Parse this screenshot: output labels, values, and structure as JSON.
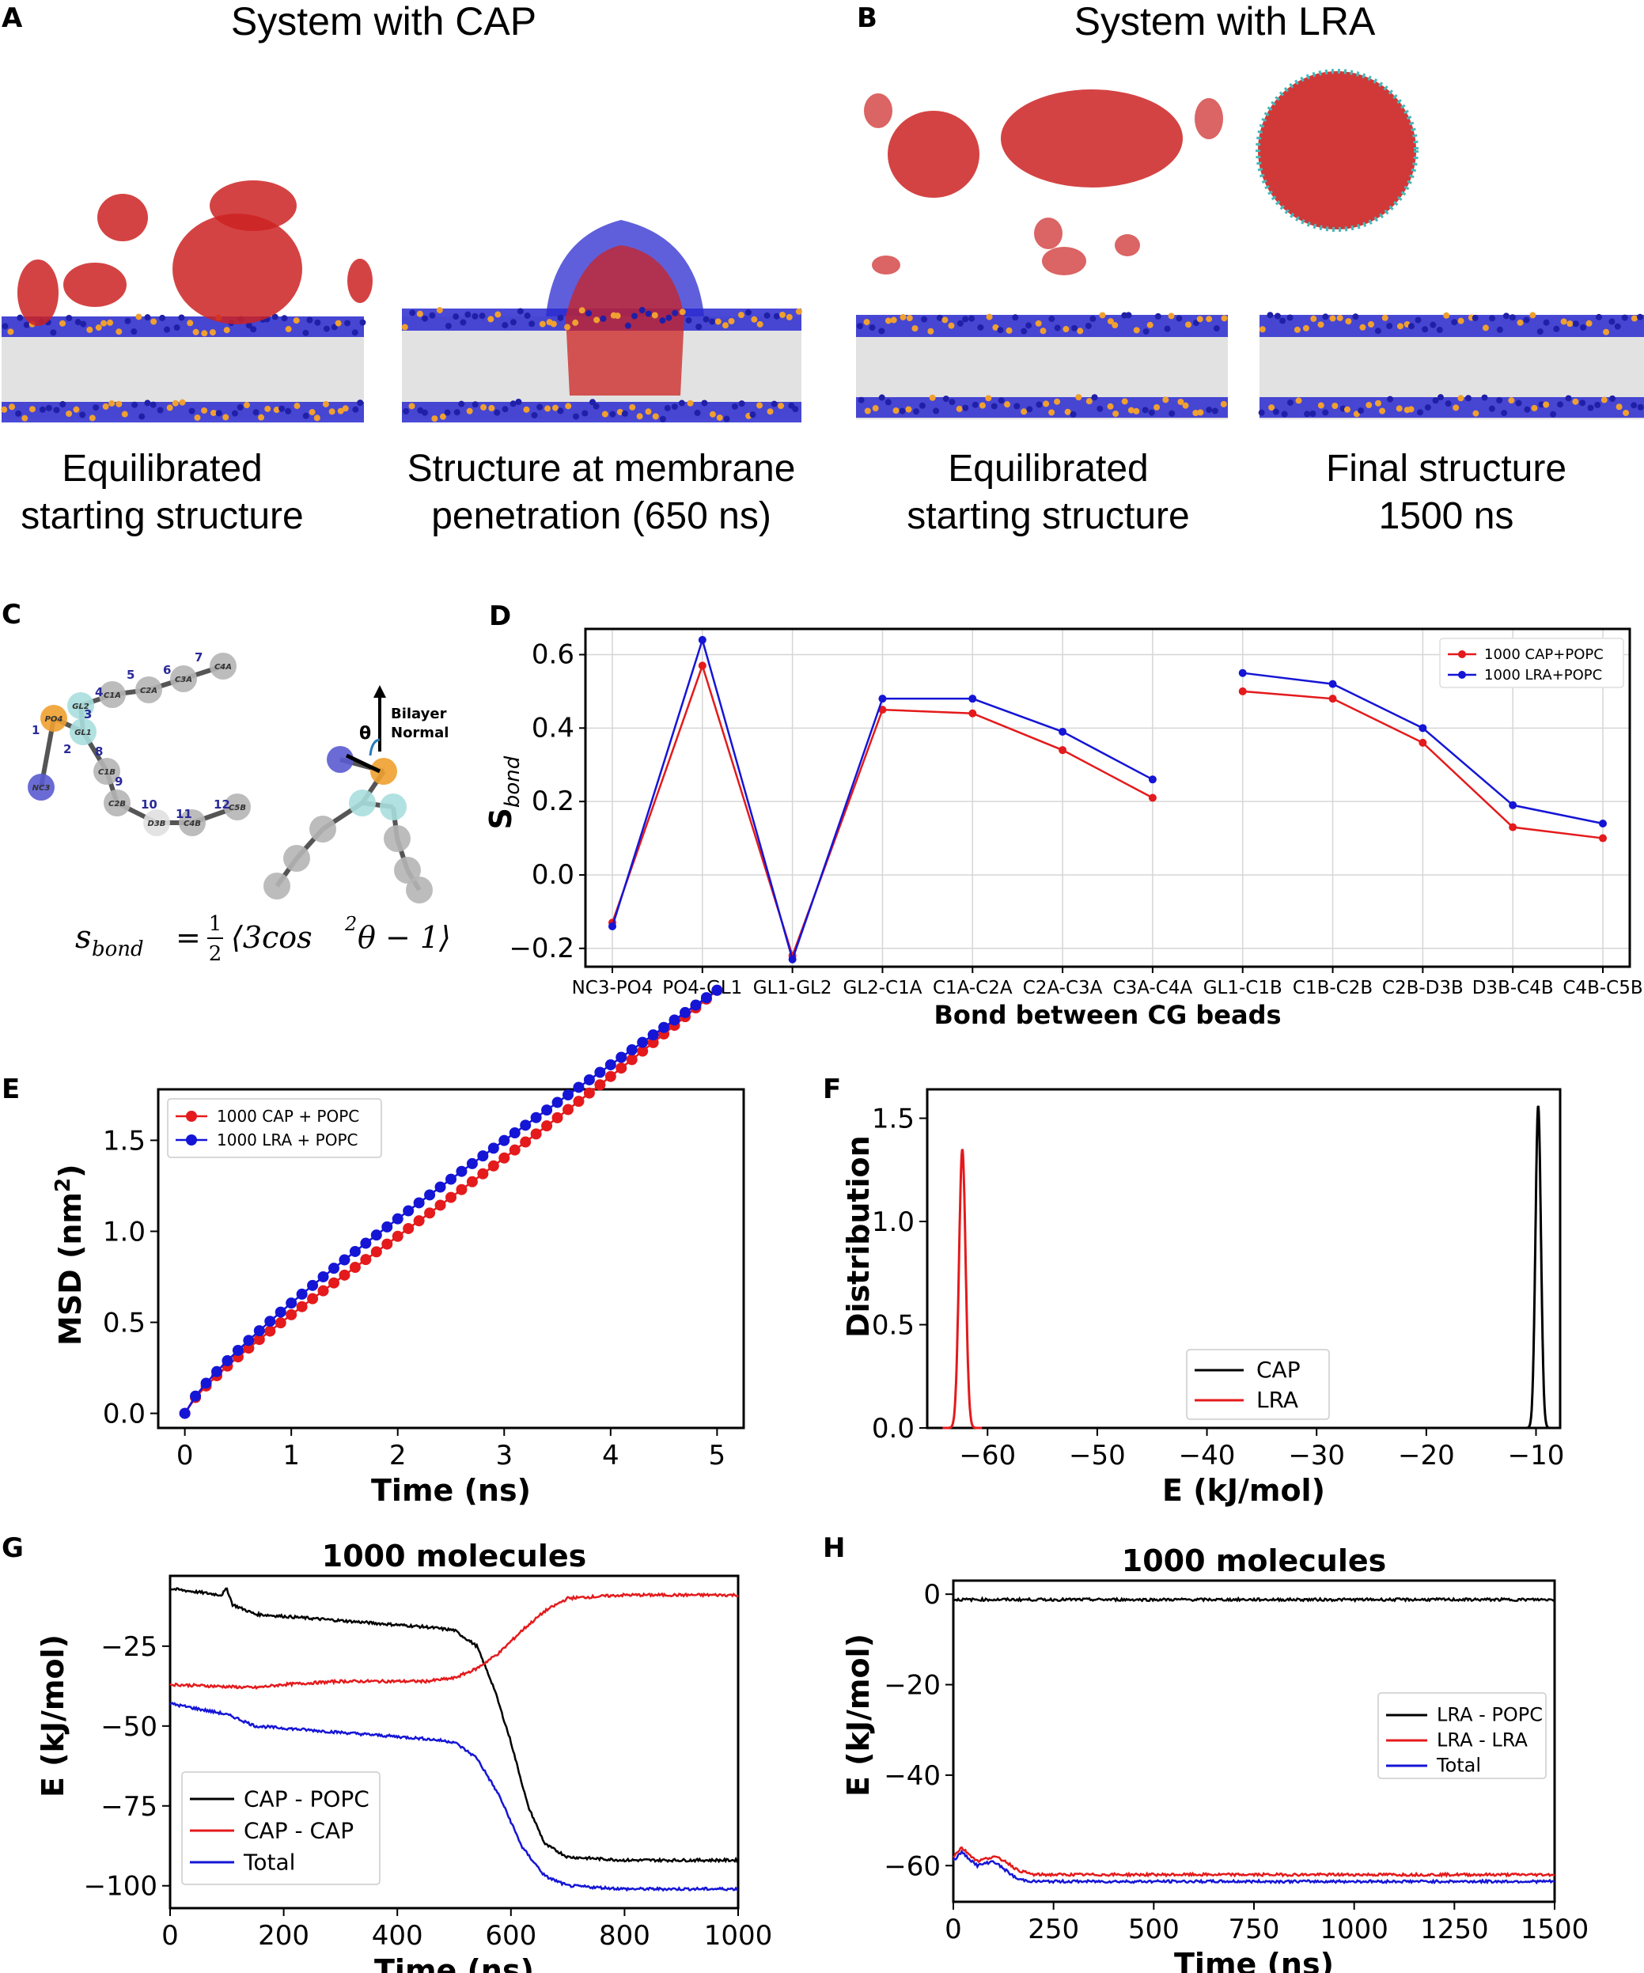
{
  "panels": {
    "A": {
      "letter": "A",
      "title": "System with CAP",
      "caption_left": [
        "Equilibrated",
        "starting structure"
      ],
      "caption_right": [
        "Structure at membrane",
        "penetration (650 ns)"
      ]
    },
    "B": {
      "letter": "B",
      "title": "System with LRA",
      "caption_left": [
        "Equilibrated",
        "starting structure"
      ],
      "caption_right": [
        "Final structure",
        "1500 ns"
      ]
    },
    "C": {
      "letter": "C",
      "bead_labels": [
        "NC3",
        "PO4",
        "GL1",
        "GL2",
        "C1A",
        "C2A",
        "C3A",
        "C4A",
        "C1B",
        "C2B",
        "D3B",
        "C4B",
        "C5B"
      ],
      "bond_numbers": [
        "1",
        "2",
        "3",
        "4",
        "5",
        "6",
        "7",
        "8",
        "9",
        "10",
        "11",
        "12"
      ],
      "normal_label": [
        "Bilayer",
        "Normal"
      ],
      "theta": "θ",
      "formula": {
        "lhs": "s",
        "sub": "bond",
        "eq": "=",
        "num": "1",
        "den": "2",
        "rhs_open": "⟨3cos",
        "sup": "2",
        "rhs_close": "θ − 1⟩"
      }
    },
    "D": {
      "letter": "D"
    },
    "E": {
      "letter": "E"
    },
    "F": {
      "letter": "F"
    },
    "G": {
      "letter": "G"
    },
    "H": {
      "letter": "H"
    }
  },
  "colors": {
    "cap": "#e41a1c",
    "lra": "#1515d6",
    "black": "#000000",
    "orange": "#f0a030",
    "navy": "#1f1fa8",
    "teal": "#48b8b8"
  },
  "chart_data": [
    {
      "id": "D",
      "type": "line",
      "title": "",
      "xlabel": "Bond between CG beads",
      "ylabel": "S",
      "ylabel_sub": "bond",
      "categories": [
        "NC3-PO4",
        "PO4-GL1",
        "GL1-GL2",
        "GL2-C1A",
        "C1A-C2A",
        "C2A-C3A",
        "C3A-C4A",
        "GL1-C1B",
        "C1B-C2B",
        "C2B-D3B",
        "D3B-C4B",
        "C4B-C5B"
      ],
      "ylim": [
        -0.25,
        0.67
      ],
      "yticks": [
        -0.2,
        0.0,
        0.2,
        0.4,
        0.6
      ],
      "ytick_labels": [
        "−0.2",
        "0.0",
        "0.2",
        "0.4",
        "0.6"
      ],
      "segments": [
        [
          0,
          6
        ],
        [
          7,
          11
        ]
      ],
      "legend_position": "top-right",
      "series": [
        {
          "name": "1000 CAP+POPC",
          "color": "#e41a1c",
          "values": [
            -0.13,
            0.57,
            -0.22,
            0.45,
            0.44,
            0.34,
            0.21,
            0.5,
            0.48,
            0.36,
            0.13,
            0.1
          ]
        },
        {
          "name": "1000 LRA+POPC",
          "color": "#1515d6",
          "values": [
            -0.14,
            0.64,
            -0.23,
            0.48,
            0.48,
            0.39,
            0.26,
            0.55,
            0.52,
            0.4,
            0.19,
            0.14
          ]
        }
      ]
    },
    {
      "id": "E",
      "type": "scatter",
      "xlabel": "Time (ns)",
      "ylabel": "MSD (nm",
      "ylabel_sup": "2",
      "ylabel_end": ")",
      "xlim": [
        -0.25,
        5.25
      ],
      "ylim": [
        -0.08,
        1.78
      ],
      "xticks": [
        0,
        1,
        2,
        3,
        4,
        5
      ],
      "xtick_labels": [
        "0",
        "1",
        "2",
        "3",
        "4",
        "5"
      ],
      "yticks": [
        0.0,
        0.5,
        1.0,
        1.5
      ],
      "ytick_labels": [
        "0.0",
        "0.5",
        "1.0",
        "1.5"
      ],
      "legend_position": "top-left",
      "n_points": 51,
      "x_step": 0.1,
      "series": [
        {
          "name": "1000 CAP + POPC",
          "color": "#e41a1c",
          "fit": {
            "a": 0.6,
            "b": 0.52,
            "c": 0.11,
            "d": 0.8
          }
        },
        {
          "name": "1000 LRA + POPC",
          "color": "#1515d6",
          "fit": {
            "a": 0.6,
            "b": 0.6,
            "c": 0.03,
            "d": 0.8
          }
        }
      ]
    },
    {
      "id": "F",
      "type": "line",
      "xlabel": "E (kJ/mol)",
      "ylabel": "Distribution",
      "xlim": [
        -65.5,
        -7.8
      ],
      "ylim": [
        0,
        1.64
      ],
      "xticks": [
        -60,
        -50,
        -40,
        -30,
        -20,
        -10
      ],
      "xtick_labels": [
        "−60",
        "−50",
        "−40",
        "−30",
        "−20",
        "−10"
      ],
      "yticks": [
        0.0,
        0.5,
        1.0,
        1.5
      ],
      "ytick_labels": [
        "0.0",
        "0.5",
        "1.0",
        "1.5"
      ],
      "legend_position": "center-left bottom",
      "series": [
        {
          "name": "CAP",
          "color": "#000000",
          "peak_x": -9.8,
          "peak_y": 1.56,
          "sigma": 0.25
        },
        {
          "name": "LRA",
          "color": "#e41a1c",
          "peak_x": -62.3,
          "peak_y": 1.35,
          "sigma": 0.3
        }
      ]
    },
    {
      "id": "G",
      "type": "line",
      "title": "1000 molecules",
      "xlabel": "Time (ns)",
      "ylabel": "E (kJ/mol)",
      "xlim": [
        0,
        1000
      ],
      "ylim": [
        -107,
        -3
      ],
      "xticks": [
        0,
        200,
        400,
        600,
        800,
        1000
      ],
      "xtick_labels": [
        "0",
        "200",
        "400",
        "600",
        "800",
        "1000"
      ],
      "yticks": [
        -25,
        -50,
        -75,
        -100
      ],
      "ytick_labels": [
        "−25",
        "−50",
        "−75",
        "−100"
      ],
      "legend_position": "bottom-left",
      "series": [
        {
          "name": "CAP - POPC",
          "color": "#000000",
          "points": [
            [
              0,
              -7
            ],
            [
              90,
              -9
            ],
            [
              100,
              -7
            ],
            [
              110,
              -12
            ],
            [
              150,
              -15
            ],
            [
              300,
              -17
            ],
            [
              450,
              -19
            ],
            [
              500,
              -20
            ],
            [
              540,
              -25
            ],
            [
              570,
              -38
            ],
            [
              600,
              -55
            ],
            [
              630,
              -75
            ],
            [
              660,
              -87
            ],
            [
              700,
              -91
            ],
            [
              800,
              -92
            ],
            [
              1000,
              -92
            ]
          ]
        },
        {
          "name": "CAP - CAP",
          "color": "#e41a1c",
          "points": [
            [
              0,
              -37
            ],
            [
              150,
              -38
            ],
            [
              200,
              -37
            ],
            [
              300,
              -36
            ],
            [
              450,
              -36
            ],
            [
              500,
              -35
            ],
            [
              540,
              -32
            ],
            [
              580,
              -27
            ],
            [
              620,
              -20
            ],
            [
              660,
              -14
            ],
            [
              700,
              -10
            ],
            [
              800,
              -9
            ],
            [
              1000,
              -9
            ]
          ]
        },
        {
          "name": "Total",
          "color": "#1515d6",
          "points": [
            [
              0,
              -43
            ],
            [
              90,
              -46
            ],
            [
              110,
              -47
            ],
            [
              150,
              -50
            ],
            [
              300,
              -52
            ],
            [
              450,
              -54
            ],
            [
              500,
              -55
            ],
            [
              540,
              -60
            ],
            [
              580,
              -72
            ],
            [
              620,
              -88
            ],
            [
              660,
              -97
            ],
            [
              700,
              -100
            ],
            [
              800,
              -101
            ],
            [
              1000,
              -101
            ]
          ]
        }
      ]
    },
    {
      "id": "H",
      "type": "line",
      "title": "1000 molecules",
      "xlabel": "Time (ns)",
      "ylabel": "E (kJ/mol)",
      "xlim": [
        0,
        1500
      ],
      "ylim": [
        -68,
        3
      ],
      "xticks": [
        0,
        250,
        500,
        750,
        1000,
        1250,
        1500
      ],
      "xtick_labels": [
        "0",
        "250",
        "500",
        "750",
        "1000",
        "1250",
        "1500"
      ],
      "yticks": [
        0,
        -20,
        -40,
        -60
      ],
      "ytick_labels": [
        "0",
        "−20",
        "−40",
        "−60"
      ],
      "legend_position": "center-right",
      "series": [
        {
          "name": "LRA - POPC",
          "color": "#000000",
          "points": [
            [
              0,
              -1.2
            ],
            [
              1500,
              -1.2
            ]
          ]
        },
        {
          "name": "LRA - LRA",
          "color": "#e41a1c",
          "points": [
            [
              0,
              -58
            ],
            [
              20,
              -56
            ],
            [
              60,
              -59
            ],
            [
              100,
              -58
            ],
            [
              130,
              -59
            ],
            [
              160,
              -61
            ],
            [
              200,
              -62
            ],
            [
              400,
              -62
            ],
            [
              1000,
              -62
            ],
            [
              1500,
              -62
            ]
          ]
        },
        {
          "name": "Total",
          "color": "#1515d6",
          "points": [
            [
              0,
              -59
            ],
            [
              20,
              -57
            ],
            [
              60,
              -60
            ],
            [
              100,
              -59
            ],
            [
              130,
              -61
            ],
            [
              160,
              -63
            ],
            [
              200,
              -63.5
            ],
            [
              400,
              -63.5
            ],
            [
              1000,
              -63.5
            ],
            [
              1500,
              -63.5
            ]
          ]
        }
      ]
    }
  ]
}
